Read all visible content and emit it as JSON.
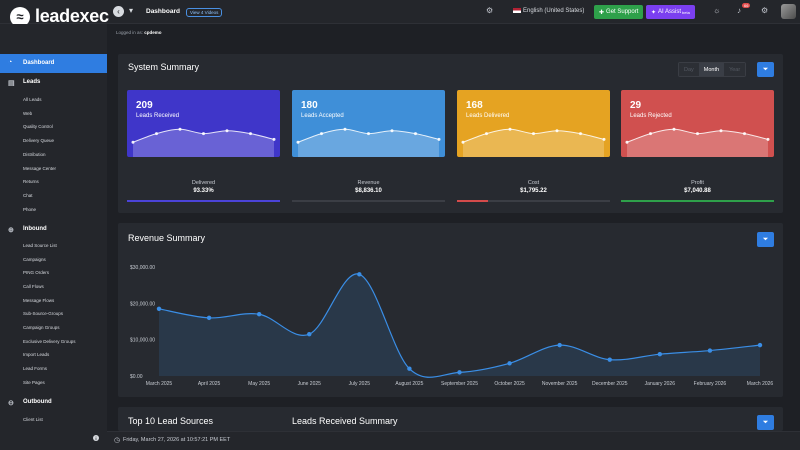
{
  "header": {
    "logo_text": "leadexec",
    "page_title": "Dashboard",
    "view_videos": "View 4 Videos",
    "language": "English (United States)",
    "support_label": "Get Support",
    "ai_label": "AI Assist",
    "ai_badge": "beta",
    "notification_count": "66"
  },
  "logged_in": {
    "prefix": "Logged in as:",
    "user": "cpdemo"
  },
  "sidebar": {
    "active": "Dashboard",
    "leads_section": "Leads",
    "leads_items": [
      "All Leads",
      "Web",
      "Quality Control",
      "Delivery Queue",
      "Distribution",
      "Message Center",
      "Returns",
      "Chat",
      "Phone"
    ],
    "inbound_section": "Inbound",
    "inbound_items": [
      "Lead Source List",
      "Campaigns",
      "PING Orders",
      "Call Flows",
      "Message Flows",
      "Sub-Source-Groups",
      "Campaign Groups",
      "Exclusive Delivery Groups",
      "Import Leads",
      "Lead Forms",
      "Site Pages"
    ],
    "outbound_section": "Outbound",
    "outbound_items": [
      "Client List"
    ]
  },
  "system_summary": {
    "title": "System Summary",
    "periods": [
      "Day",
      "Month",
      "Year"
    ],
    "selected_period": "Month",
    "cards": [
      {
        "value": "209",
        "label": "Leads Received",
        "color": "#3f36c9",
        "trend": [
          3,
          6,
          7.5,
          6,
          7,
          6,
          4
        ]
      },
      {
        "value": "180",
        "label": "Leads Accepted",
        "color": "#3f8fd8",
        "trend": [
          3,
          6,
          7.5,
          6,
          7,
          6,
          4
        ]
      },
      {
        "value": "168",
        "label": "Leads Delivered",
        "color": "#e5a322",
        "trend": [
          3,
          6,
          7.5,
          6,
          7,
          6,
          4
        ]
      },
      {
        "value": "29",
        "label": "Leads Rejected",
        "color": "#d0504f",
        "trend": [
          3,
          6,
          7.5,
          6,
          7,
          6,
          4
        ]
      }
    ],
    "metrics": [
      {
        "label": "Delivered",
        "value": "93.33%",
        "color": "#4b43d8",
        "fraction": 1.0
      },
      {
        "label": "Revenue",
        "value": "$8,836.10",
        "color": "#3b3e45",
        "fraction": 0.0
      },
      {
        "label": "Cost",
        "value": "$1,795.22",
        "color": "#d44b4b",
        "fraction": 0.2
      },
      {
        "label": "Profit",
        "value": "$7,040.88",
        "color": "#2ea04a",
        "fraction": 1.0
      }
    ]
  },
  "revenue_summary": {
    "title": "Revenue Summary"
  },
  "chart_data": {
    "type": "area",
    "title": "Revenue Summary",
    "categories": [
      "March 2025",
      "April 2025",
      "May 2025",
      "June 2025",
      "July 2025",
      "August 2025",
      "September 2025",
      "October 2025",
      "November 2025",
      "December 2025",
      "January 2026",
      "February 2026",
      "March 2026"
    ],
    "values": [
      18500,
      16000,
      17000,
      11500,
      28000,
      2000,
      1000,
      3500,
      8500,
      4500,
      6000,
      7000,
      8500
    ],
    "y_ticks": [
      "$0.00",
      "$10,000.00",
      "$20,000.00",
      "$30,000.00"
    ],
    "ylim": [
      0,
      30000
    ],
    "grid": false,
    "line_color": "#3a8ee6"
  },
  "bottom": {
    "top_sources_title": "Top 10 Lead Sources",
    "received_title": "Leads Received Summary"
  },
  "footer": {
    "datetime": "Friday, March 27, 2026 at 10:57:21 PM EET"
  }
}
